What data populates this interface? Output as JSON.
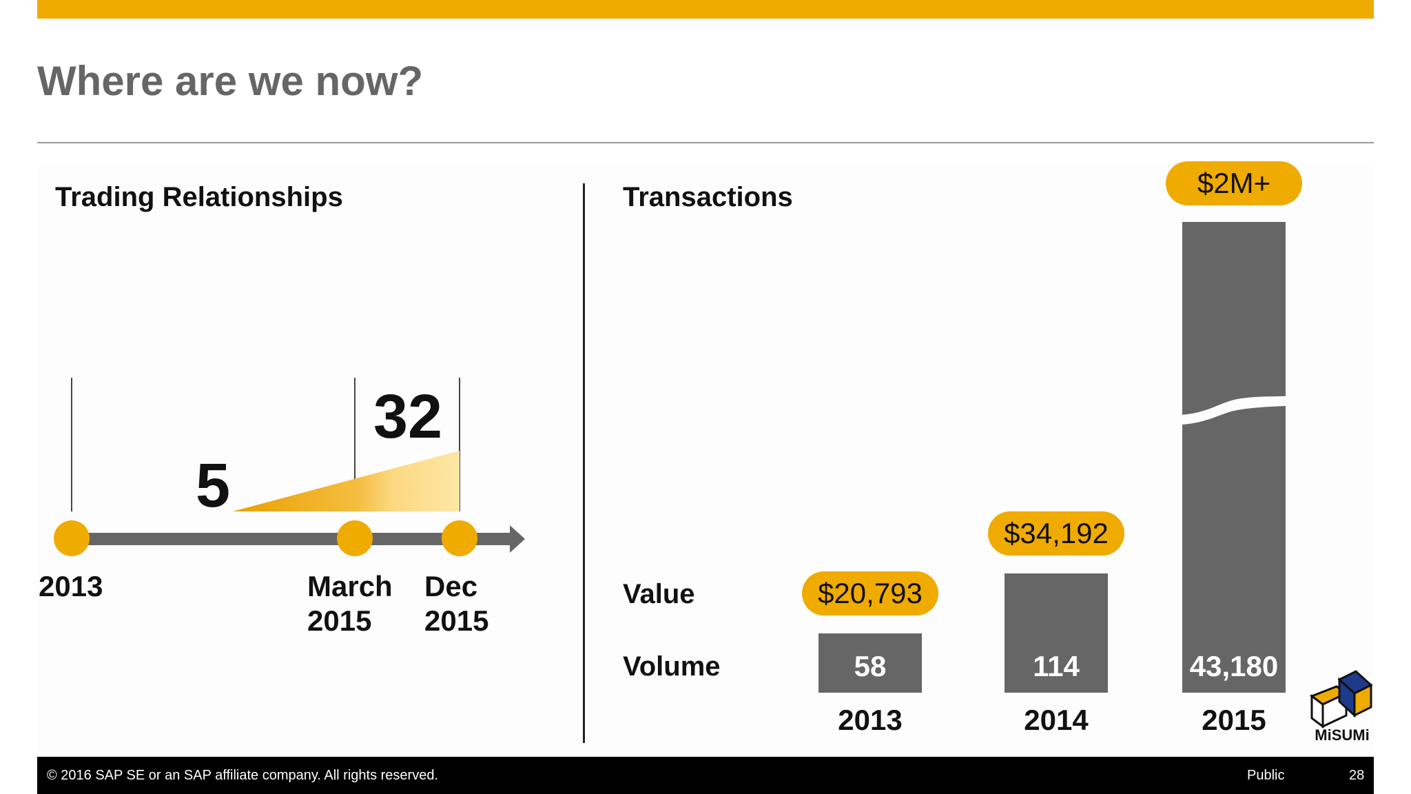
{
  "slide": {
    "title": "Where are we now?",
    "accent_color": "#F0AB00",
    "bar_color": "#666666"
  },
  "trading": {
    "section_title": "Trading Relationships",
    "count_start": "5",
    "count_end": "32",
    "timeline": [
      {
        "label_line1": "2013",
        "label_line2": ""
      },
      {
        "label_line1": "March",
        "label_line2": "2015"
      },
      {
        "label_line1": "Dec",
        "label_line2": "2015"
      }
    ]
  },
  "transactions": {
    "section_title": "Transactions",
    "value_label": "Value",
    "volume_label": "Volume",
    "bars": [
      {
        "year": "2013",
        "value": "$20,793",
        "volume": "58"
      },
      {
        "year": "2014",
        "value": "$34,192",
        "volume": "114"
      },
      {
        "year": "2015",
        "value": "$2M+",
        "volume": "43,180"
      }
    ]
  },
  "logo": {
    "text": "MiSUMi",
    "icon": "misumi-cube-logo"
  },
  "footer": {
    "copyright": "© 2016 SAP SE or an SAP affiliate company. All rights reserved.",
    "classification": "Public",
    "page_number": "28"
  }
}
